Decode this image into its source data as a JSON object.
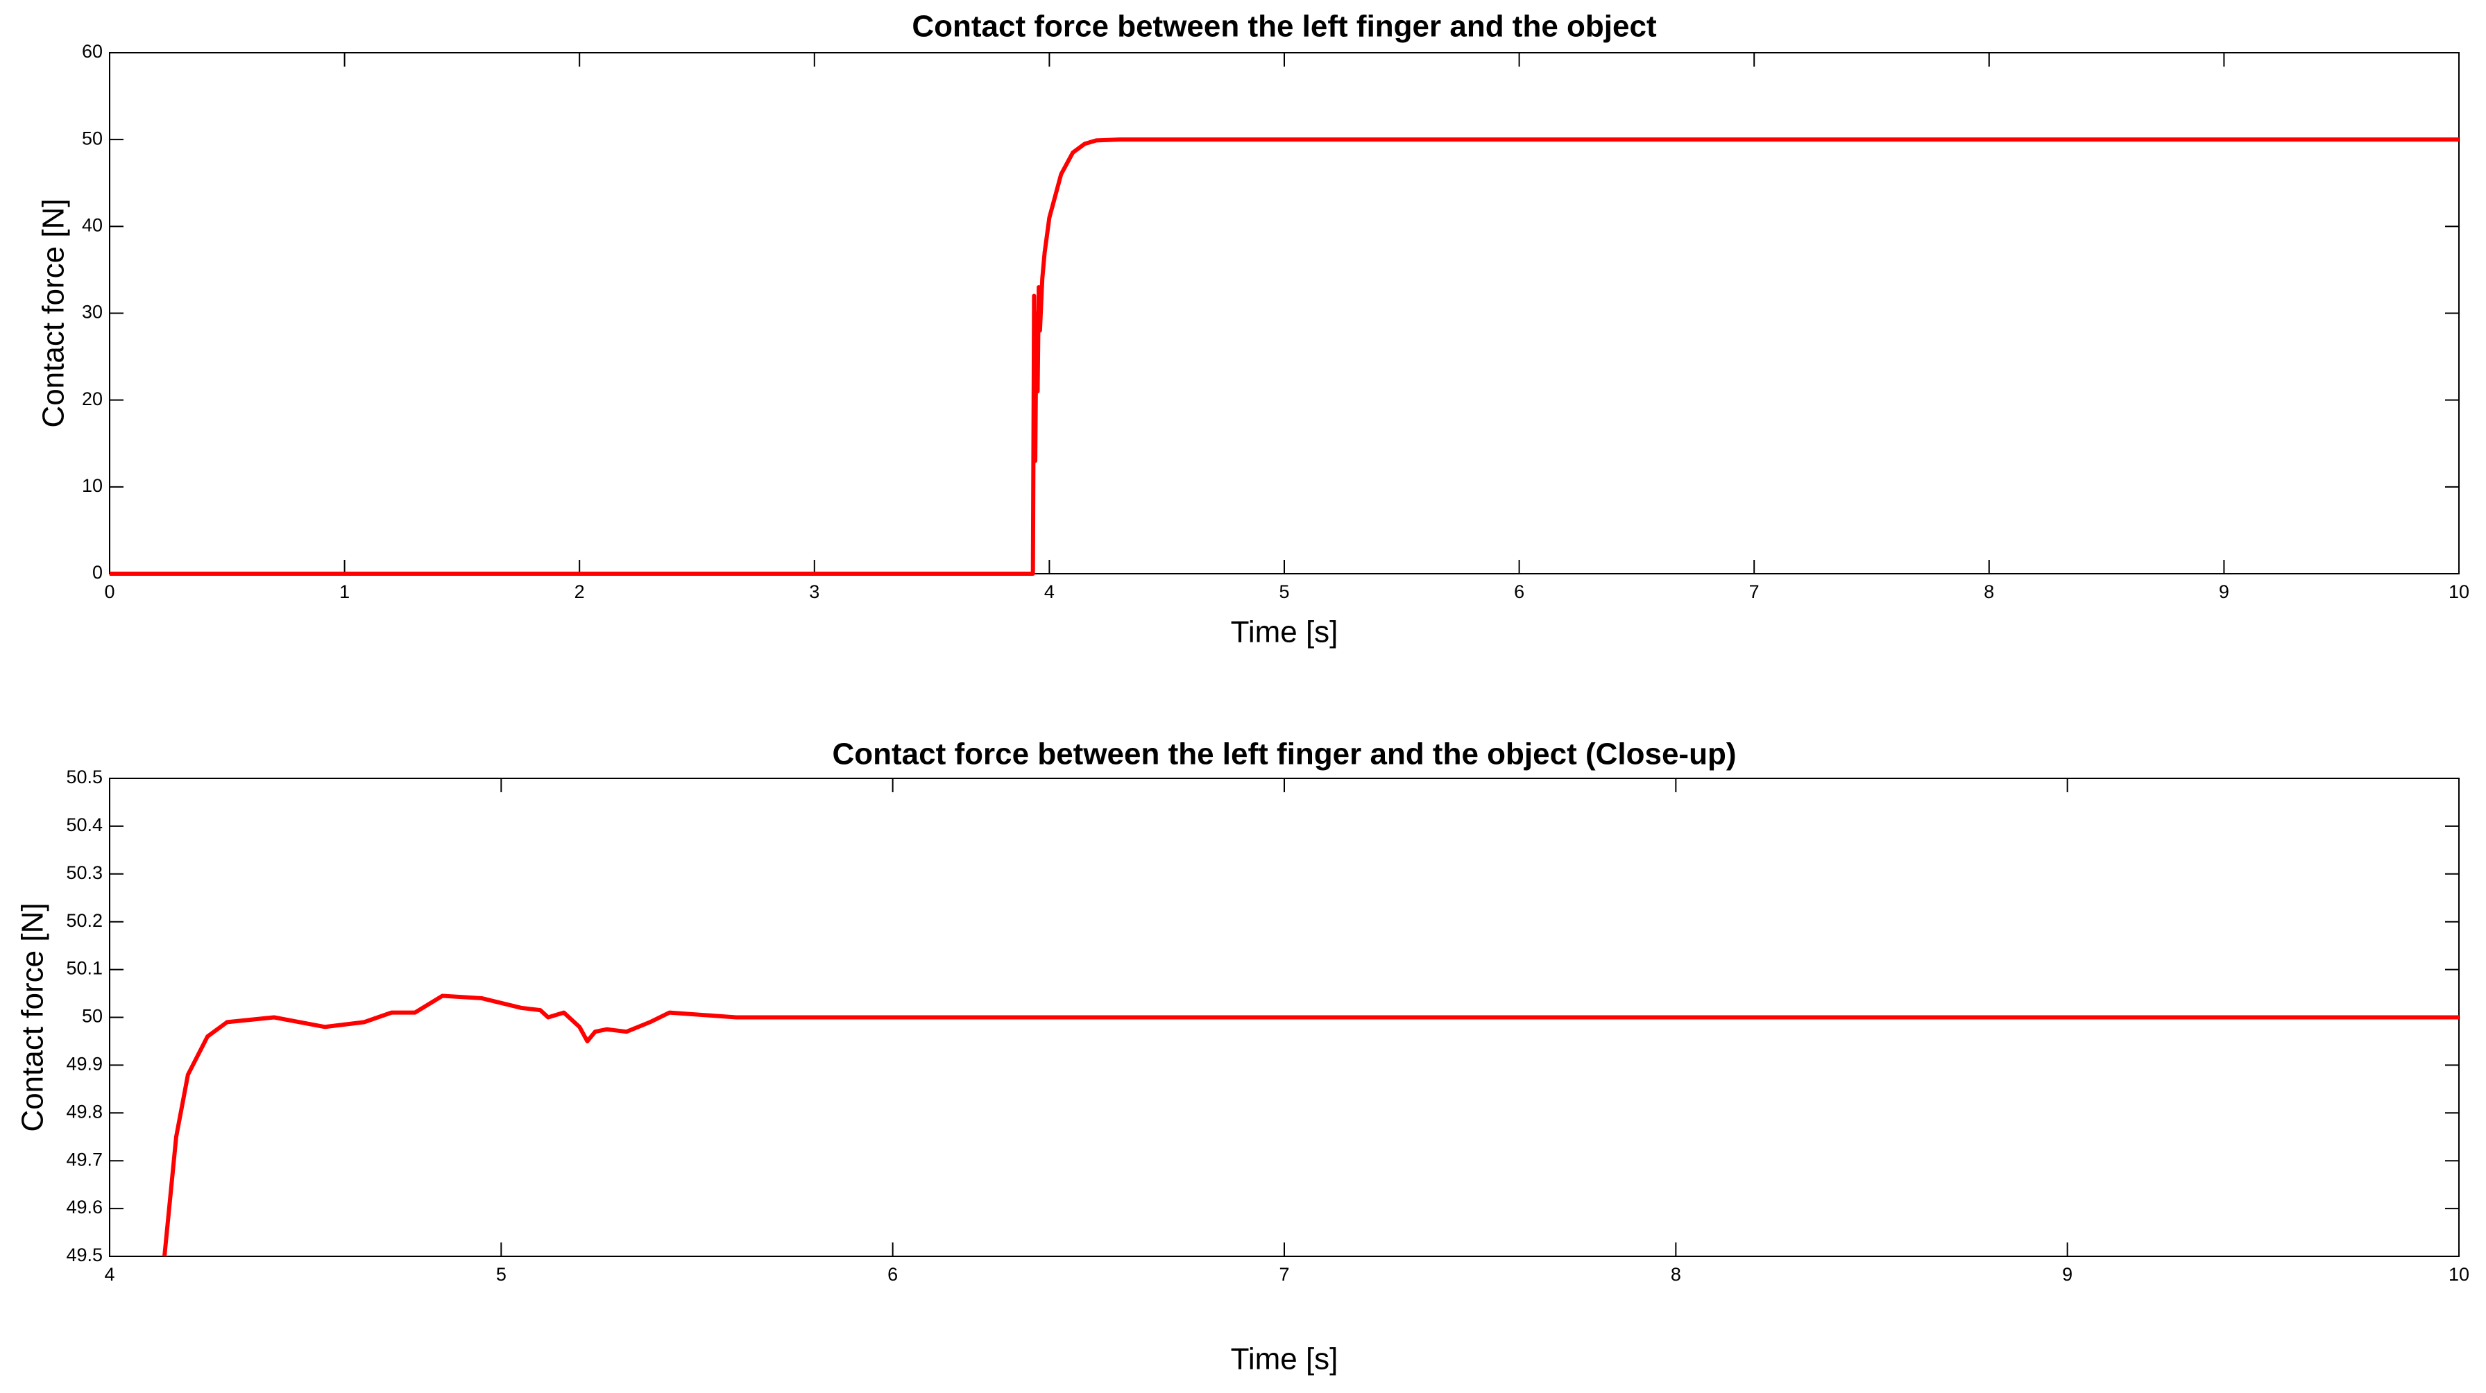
{
  "chart_data": [
    {
      "type": "line",
      "title": "Contact force between the left finger and the object",
      "x_label": "Time [s]",
      "y_label": "Contact force [N]",
      "xlim": [
        0,
        10
      ],
      "xticks": [
        0,
        1,
        2,
        3,
        4,
        5,
        6,
        7,
        8,
        9,
        10
      ],
      "ylim": [
        0,
        60
      ],
      "yticks": [
        0,
        10,
        20,
        30,
        40,
        50,
        60
      ],
      "grid": false,
      "series": [
        {
          "name": "Contact force",
          "color": "#ff0000",
          "x": [
            0,
            3.93,
            3.935,
            3.94,
            3.945,
            3.95,
            3.955,
            3.96,
            3.97,
            3.98,
            4.0,
            4.05,
            4.1,
            4.15,
            4.2,
            4.3,
            4.5,
            5,
            6,
            7,
            8,
            9,
            10
          ],
          "values": [
            0,
            0,
            32,
            13,
            30,
            21,
            33,
            28,
            34,
            37,
            41,
            46,
            48.5,
            49.5,
            49.9,
            50,
            50,
            50,
            50,
            50,
            50,
            50,
            50
          ]
        }
      ]
    },
    {
      "type": "line",
      "title": "Contact force between the left finger and the object (Close-up)",
      "x_label": "Time [s]",
      "y_label": "Contact force [N]",
      "xlim": [
        4,
        10
      ],
      "xticks": [
        4,
        5,
        6,
        7,
        8,
        9,
        10
      ],
      "ylim": [
        49.5,
        50.5
      ],
      "yticks": [
        49.5,
        49.6,
        49.7,
        49.8,
        49.9,
        50,
        50.1,
        50.2,
        50.3,
        50.4,
        50.5
      ],
      "grid": false,
      "series": [
        {
          "name": "Contact force",
          "color": "#ff0000",
          "x": [
            4.14,
            4.17,
            4.2,
            4.25,
            4.3,
            4.42,
            4.55,
            4.65,
            4.72,
            4.78,
            4.85,
            4.95,
            5.05,
            5.1,
            5.12,
            5.16,
            5.2,
            5.22,
            5.24,
            5.27,
            5.32,
            5.38,
            5.43,
            5.6,
            6,
            7,
            8,
            9,
            10
          ],
          "values": [
            49.5,
            49.75,
            49.88,
            49.96,
            49.99,
            50,
            49.98,
            49.99,
            50.01,
            50.01,
            50.045,
            50.04,
            50.02,
            50.015,
            50,
            50.01,
            49.98,
            49.95,
            49.97,
            49.975,
            49.97,
            49.99,
            50.01,
            50,
            50,
            50,
            50,
            50,
            50
          ]
        }
      ]
    }
  ]
}
